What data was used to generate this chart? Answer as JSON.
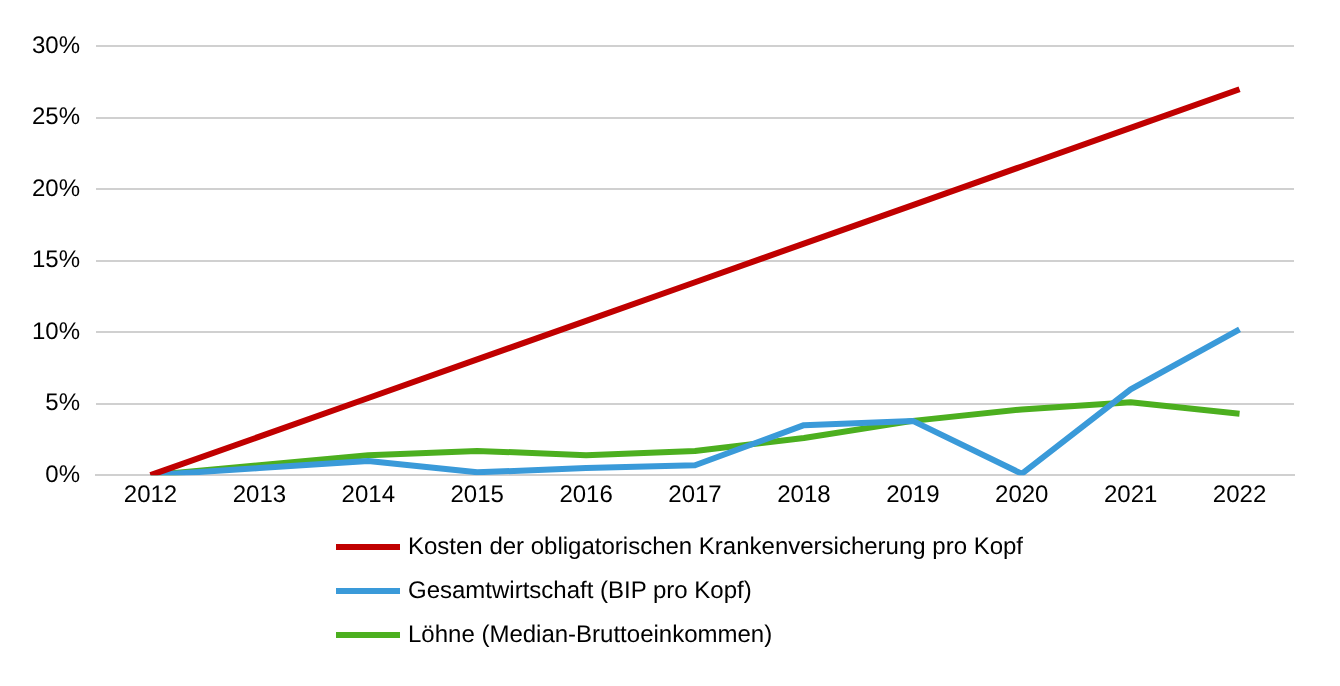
{
  "chart_data": {
    "type": "line",
    "categories": [
      "2012",
      "2013",
      "2014",
      "2015",
      "2016",
      "2017",
      "2018",
      "2019",
      "2020",
      "2021",
      "2022"
    ],
    "series": [
      {
        "name": "Kosten der obligatorischen Krankenversicherung pro Kopf",
        "color": "#c00000",
        "values": [
          0,
          2.7,
          5.4,
          8.1,
          10.8,
          13.5,
          16.2,
          18.9,
          21.6,
          24.3,
          27.0
        ]
      },
      {
        "name": "Gesamtwirtschaft (BIP pro Kopf)",
        "color": "#3a9ad9",
        "values": [
          0,
          0.5,
          1.0,
          0.2,
          0.5,
          0.7,
          3.5,
          3.8,
          0.1,
          6.0,
          10.2
        ]
      },
      {
        "name": "Löhne (Median-Bruttoeinkommen)",
        "color": "#4caf1f",
        "values": [
          0,
          0.7,
          1.4,
          1.7,
          1.4,
          1.7,
          2.6,
          3.8,
          4.6,
          5.1,
          4.3
        ]
      }
    ],
    "ylim": [
      0,
      30
    ],
    "yticks": [
      {
        "value": 0,
        "label": "0%"
      },
      {
        "value": 5,
        "label": "5%"
      },
      {
        "value": 10,
        "label": "10%"
      },
      {
        "value": 15,
        "label": "15%"
      },
      {
        "value": 20,
        "label": "20%"
      },
      {
        "value": 25,
        "label": "25%"
      },
      {
        "value": 30,
        "label": "30%"
      }
    ],
    "grid": "y",
    "legend": "bottom",
    "marker": "none",
    "line_style": "solid"
  }
}
